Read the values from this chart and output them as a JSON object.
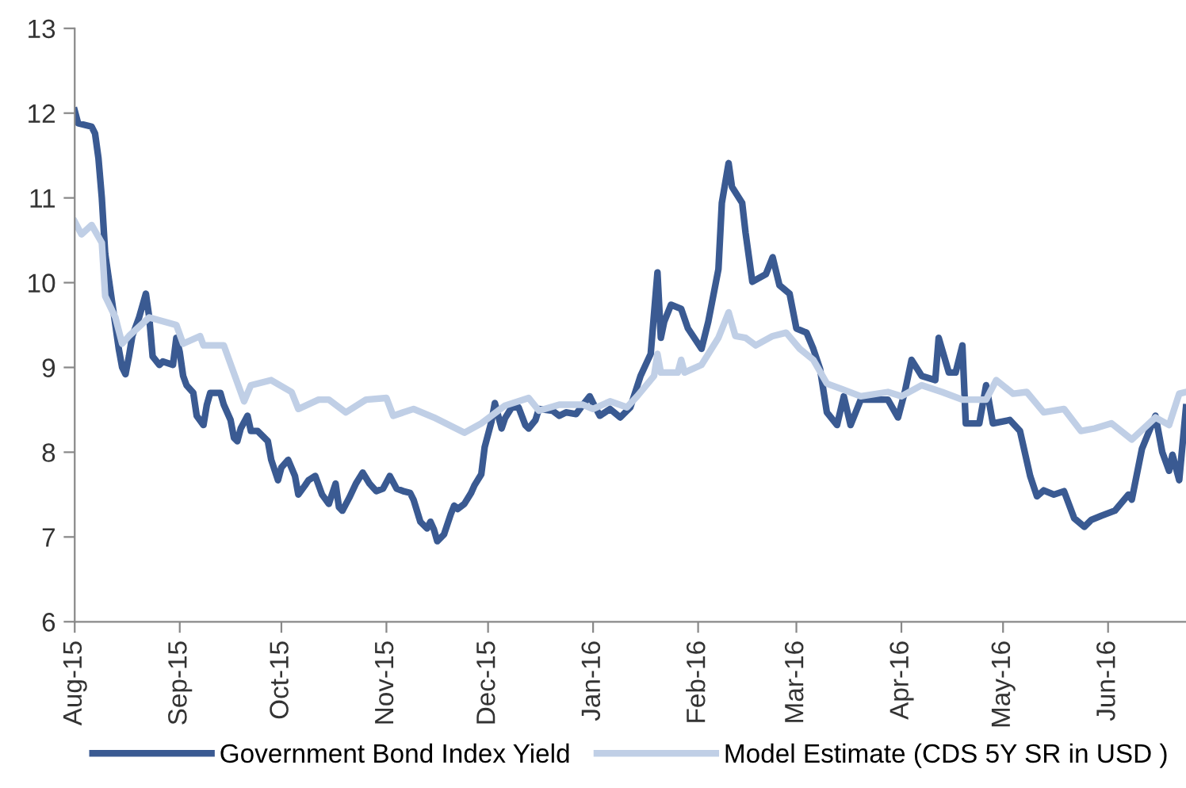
{
  "chart_data": {
    "type": "line",
    "xlim": [
      "2015-08-01",
      "2016-06-24"
    ],
    "ylim": [
      6,
      13
    ],
    "yticks": [
      6,
      7,
      8,
      9,
      10,
      11,
      12,
      13
    ],
    "xticks": [
      {
        "value": "2015-08-01",
        "label": "Aug-15"
      },
      {
        "value": "2015-09-01",
        "label": "Sep-15"
      },
      {
        "value": "2015-10-01",
        "label": "Oct-15"
      },
      {
        "value": "2015-11-01",
        "label": "Nov-15"
      },
      {
        "value": "2015-12-01",
        "label": "Dec-15"
      },
      {
        "value": "2016-01-01",
        "label": "Jan-16"
      },
      {
        "value": "2016-02-01",
        "label": "Feb-16"
      },
      {
        "value": "2016-03-01",
        "label": "Mar-16"
      },
      {
        "value": "2016-04-01",
        "label": "Apr-16"
      },
      {
        "value": "2016-05-01",
        "label": "May-16"
      },
      {
        "value": "2016-06-01",
        "label": "Jun-16"
      }
    ],
    "grid": false,
    "legend": "bottom",
    "marker": "none",
    "line_style": "solid",
    "series": [
      {
        "name": "Government Bond Index Yield",
        "color": "#3a5a92",
        "x": [
          "2015-08-01",
          "2015-08-02",
          "2015-08-06",
          "2015-08-07",
          "2015-08-08",
          "2015-08-09",
          "2015-08-10",
          "2015-08-11",
          "2015-08-12",
          "2015-08-13",
          "2015-08-14",
          "2015-08-15",
          "2015-08-16",
          "2015-08-17",
          "2015-08-18",
          "2015-08-20",
          "2015-08-22",
          "2015-08-23",
          "2015-08-24",
          "2015-08-26",
          "2015-08-27",
          "2015-08-30",
          "2015-08-31",
          "2015-09-01",
          "2015-09-02",
          "2015-09-03",
          "2015-09-05",
          "2015-09-06",
          "2015-09-08",
          "2015-09-09",
          "2015-09-10",
          "2015-09-13",
          "2015-09-14",
          "2015-09-16",
          "2015-09-17",
          "2015-09-18",
          "2015-09-19",
          "2015-09-21",
          "2015-09-22",
          "2015-09-24",
          "2015-09-27",
          "2015-09-28",
          "2015-09-30",
          "2015-10-01",
          "2015-10-03",
          "2015-10-05",
          "2015-10-06",
          "2015-10-08",
          "2015-10-09",
          "2015-10-11",
          "2015-10-13",
          "2015-10-15",
          "2015-10-17",
          "2015-10-18",
          "2015-10-19",
          "2015-10-21",
          "2015-10-23",
          "2015-10-25",
          "2015-10-27",
          "2015-10-29",
          "2015-10-31",
          "2015-11-02",
          "2015-11-04",
          "2015-11-06",
          "2015-11-08",
          "2015-11-09",
          "2015-11-11",
          "2015-11-13",
          "2015-11-14",
          "2015-11-15",
          "2015-11-16",
          "2015-11-18",
          "2015-11-20",
          "2015-11-21",
          "2015-11-22",
          "2015-11-24",
          "2015-11-26",
          "2015-11-27",
          "2015-11-29",
          "2015-11-30",
          "2015-12-02",
          "2015-12-03",
          "2015-12-05",
          "2015-12-06",
          "2015-12-08",
          "2015-12-10",
          "2015-12-12",
          "2015-12-13",
          "2015-12-15",
          "2015-12-16",
          "2015-12-20",
          "2015-12-22",
          "2015-12-24",
          "2015-12-27",
          "2015-12-29",
          "2015-12-31",
          "2016-01-01",
          "2016-01-03",
          "2016-01-06",
          "2016-01-09",
          "2016-01-12",
          "2016-01-15",
          "2016-01-18",
          "2016-01-20",
          "2016-01-21",
          "2016-01-22",
          "2016-01-24",
          "2016-01-27",
          "2016-01-29",
          "2016-02-02",
          "2016-02-04",
          "2016-02-07",
          "2016-02-08",
          "2016-02-10",
          "2016-02-11",
          "2016-02-14",
          "2016-02-15",
          "2016-02-17",
          "2016-02-21",
          "2016-02-23",
          "2016-02-25",
          "2016-02-28",
          "2016-03-01",
          "2016-03-04",
          "2016-03-06",
          "2016-03-08",
          "2016-03-10",
          "2016-03-13",
          "2016-03-15",
          "2016-03-17",
          "2016-03-20",
          "2016-03-25",
          "2016-03-28",
          "2016-03-31",
          "2016-04-02",
          "2016-04-04",
          "2016-04-07",
          "2016-04-11",
          "2016-04-12",
          "2016-04-15",
          "2016-04-17",
          "2016-04-19",
          "2016-04-20",
          "2016-04-24",
          "2016-04-26",
          "2016-04-28",
          "2016-05-03",
          "2016-05-06",
          "2016-05-09",
          "2016-05-11",
          "2016-05-13",
          "2016-05-16",
          "2016-05-19",
          "2016-05-22",
          "2016-05-25",
          "2016-05-27",
          "2016-05-30",
          "2016-06-03",
          "2016-06-07",
          "2016-06-08",
          "2016-06-11",
          "2016-06-15",
          "2016-06-17",
          "2016-06-19",
          "2016-06-20",
          "2016-06-22",
          "2016-06-24"
        ],
        "values": [
          12.03,
          11.88,
          11.84,
          11.76,
          11.47,
          11.0,
          10.34,
          10.06,
          9.78,
          9.5,
          9.22,
          9.0,
          8.92,
          9.13,
          9.37,
          9.59,
          9.87,
          9.59,
          9.13,
          9.03,
          9.07,
          9.03,
          9.35,
          9.18,
          8.9,
          8.79,
          8.7,
          8.43,
          8.32,
          8.56,
          8.7,
          8.7,
          8.56,
          8.38,
          8.17,
          8.13,
          8.28,
          8.43,
          8.25,
          8.25,
          8.13,
          7.91,
          7.67,
          7.82,
          7.91,
          7.72,
          7.5,
          7.61,
          7.67,
          7.72,
          7.5,
          7.39,
          7.63,
          7.35,
          7.31,
          7.46,
          7.63,
          7.76,
          7.63,
          7.54,
          7.57,
          7.72,
          7.57,
          7.54,
          7.52,
          7.44,
          7.18,
          7.1,
          7.18,
          7.09,
          6.95,
          7.03,
          7.27,
          7.37,
          7.33,
          7.39,
          7.52,
          7.61,
          7.74,
          8.06,
          8.36,
          8.58,
          8.28,
          8.4,
          8.53,
          8.53,
          8.32,
          8.28,
          8.38,
          8.51,
          8.49,
          8.43,
          8.47,
          8.45,
          8.56,
          8.66,
          8.58,
          8.43,
          8.51,
          8.41,
          8.53,
          8.9,
          9.16,
          10.12,
          9.35,
          9.54,
          9.74,
          9.69,
          9.46,
          9.22,
          9.54,
          10.16,
          10.94,
          11.41,
          11.13,
          10.94,
          10.59,
          10.01,
          10.1,
          10.3,
          9.97,
          9.87,
          9.46,
          9.41,
          9.22,
          8.98,
          8.47,
          8.32,
          8.66,
          8.32,
          8.62,
          8.62,
          8.62,
          8.41,
          8.71,
          9.09,
          8.9,
          8.85,
          9.35,
          8.94,
          8.94,
          9.26,
          8.34,
          8.34,
          8.79,
          8.34,
          8.38,
          8.25,
          7.72,
          7.48,
          7.55,
          7.5,
          7.54,
          7.22,
          7.12,
          7.2,
          7.25,
          7.31,
          7.5,
          7.44,
          8.04,
          8.43,
          8.0,
          7.78,
          7.97,
          7.67,
          8.53
        ]
      },
      {
        "name": "Model Estimate (CDS 5Y SR in USD )",
        "color": "#c0cfe6",
        "x": [
          "2015-08-01",
          "2015-08-03",
          "2015-08-06",
          "2015-08-09",
          "2015-08-10",
          "2015-08-13",
          "2015-08-15",
          "2015-08-17",
          "2015-08-23",
          "2015-08-31",
          "2015-09-02",
          "2015-09-07",
          "2015-09-08",
          "2015-09-14",
          "2015-09-20",
          "2015-09-22",
          "2015-09-28",
          "2015-10-04",
          "2015-10-06",
          "2015-10-12",
          "2015-10-15",
          "2015-10-20",
          "2015-10-26",
          "2015-11-01",
          "2015-11-03",
          "2015-11-09",
          "2015-11-15",
          "2015-11-24",
          "2015-11-29",
          "2015-12-06",
          "2015-12-13",
          "2015-12-16",
          "2015-12-22",
          "2015-12-29",
          "2016-01-01",
          "2016-01-06",
          "2016-01-11",
          "2016-01-14",
          "2016-01-19",
          "2016-01-20",
          "2016-01-21",
          "2016-01-26",
          "2016-01-27",
          "2016-01-28",
          "2016-02-02",
          "2016-02-07",
          "2016-02-10",
          "2016-02-12",
          "2016-02-15",
          "2016-02-18",
          "2016-02-23",
          "2016-02-27",
          "2016-03-02",
          "2016-03-06",
          "2016-03-10",
          "2016-03-14",
          "2016-03-20",
          "2016-03-28",
          "2016-04-01",
          "2016-04-07",
          "2016-04-13",
          "2016-04-19",
          "2016-04-26",
          "2016-04-29",
          "2016-05-04",
          "2016-05-08",
          "2016-05-13",
          "2016-05-19",
          "2016-05-24",
          "2016-05-28",
          "2016-06-02",
          "2016-06-08",
          "2016-06-15",
          "2016-06-19",
          "2016-06-22",
          "2016-06-24"
        ],
        "values": [
          10.72,
          10.57,
          10.68,
          10.47,
          9.84,
          9.59,
          9.28,
          9.37,
          9.59,
          9.5,
          9.28,
          9.37,
          9.26,
          9.26,
          8.6,
          8.79,
          8.85,
          8.71,
          8.51,
          8.62,
          8.62,
          8.47,
          8.62,
          8.64,
          8.43,
          8.51,
          8.41,
          8.23,
          8.34,
          8.55,
          8.64,
          8.49,
          8.56,
          8.56,
          8.51,
          8.6,
          8.53,
          8.66,
          8.9,
          9.16,
          8.94,
          8.94,
          9.09,
          8.94,
          9.03,
          9.35,
          9.65,
          9.37,
          9.35,
          9.26,
          9.37,
          9.41,
          9.22,
          9.09,
          8.81,
          8.75,
          8.66,
          8.71,
          8.66,
          8.79,
          8.71,
          8.62,
          8.62,
          8.85,
          8.69,
          8.71,
          8.47,
          8.51,
          8.25,
          8.28,
          8.34,
          8.15,
          8.41,
          8.32,
          8.69,
          8.71
        ]
      }
    ]
  }
}
